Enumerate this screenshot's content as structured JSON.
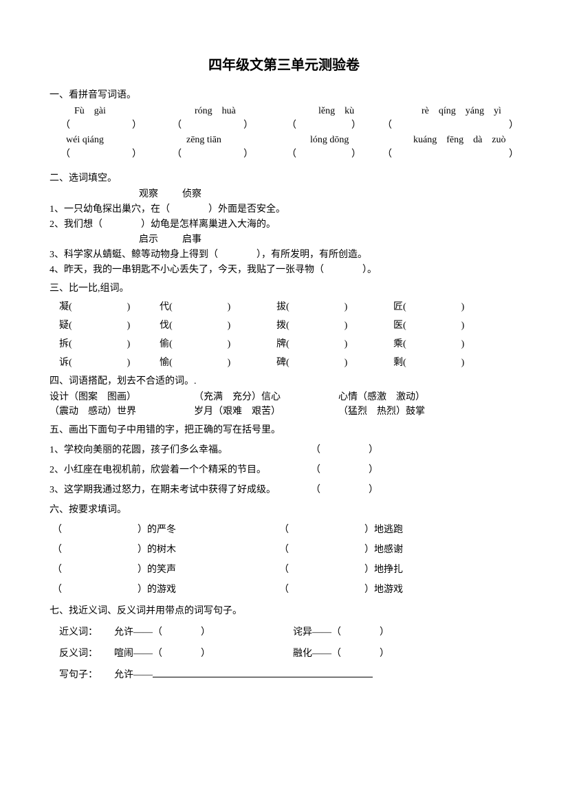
{
  "title": "四年级文第三单元测验卷",
  "s1": {
    "head": "一、看拼音写词语。",
    "row1": {
      "p1": "Fù gài",
      "p2": "róng huà",
      "p3": "lěng kù",
      "p4": "rè qíng yáng yì"
    },
    "row2": {
      "p1": "wéi qiáng",
      "p2": "zēng tiān",
      "p3": "lóng dōng",
      "p4": "kuáng fēng dà zuò"
    },
    "lp": "（",
    "rp": "）"
  },
  "s2": {
    "head": "二、选词填空。",
    "pair1a": "观察",
    "pair1b": "侦察",
    "q1": "1、一只幼龟探出巢穴，在（　　　　）外面是否安全。",
    "q2": "2、我们想（　　　　）幼龟是怎样离巢进入大海的。",
    "pair2a": "启示",
    "pair2b": "启事",
    "q3": "3、科学家从蜻蜓、鲸等动物身上得到（　　　　），有所发明，有所创造。",
    "q4": "4、昨天，我的一串钥匙不小心丢失了，今天，我贴了一张寻物（　　　　）。"
  },
  "s3": {
    "head": "三、比一比,组词。",
    "rows": [
      [
        "凝(",
        "代(",
        "拔(",
        "匠("
      ],
      [
        "疑(",
        "伐(",
        "拨(",
        "医("
      ],
      [
        "拆(",
        "偷(",
        "牌(",
        "乘("
      ],
      [
        "诉(",
        "愉(",
        "碑(",
        "剩("
      ]
    ],
    "rp": ")"
  },
  "s4": {
    "head": "四、词语搭配，划去不合适的词。.",
    "l1a": "设计（图案　图画）",
    "l1b": "（充满　充分）信心",
    "l1c": "心情（感激　激动）",
    "l2a": "（震动　感动）世界",
    "l2b": "岁月（艰难　艰苦）",
    "l2c": "（猛烈　热烈）鼓掌"
  },
  "s5": {
    "head": "五、画出下面句子中用错的字，把正确的写在括号里。",
    "q1": "1、学校向美丽的花圆，孩子们多么幸福。",
    "q2": "2、小红座在电视机前，欣尝着一个个精采的节目。",
    "q3": "3、这学期我通过怒力，在期未考试中获得了好成级。",
    "lp": "（",
    "rp": "）"
  },
  "s6": {
    "head": "六、按要求填词。",
    "rows": [
      [
        "）的严冬",
        "）地逃跑"
      ],
      [
        "）的树木",
        "）地感谢"
      ],
      [
        "）的笑声",
        "）地挣扎"
      ],
      [
        "）的游戏",
        "）地游戏"
      ]
    ],
    "lp": "（"
  },
  "s7": {
    "head": "七、找近义词、反义词并用带点的词写句子。",
    "syn_label": "近义词：",
    "syn1": "允许——（　　　　）",
    "syn2": "诧异——（　　　　）",
    "ant_label": "反义词：",
    "ant1": "喧闹——（　　　　）",
    "ant2": "融化——（　　　　）",
    "sent_label": "写句子：",
    "sent_word": "允许——"
  }
}
